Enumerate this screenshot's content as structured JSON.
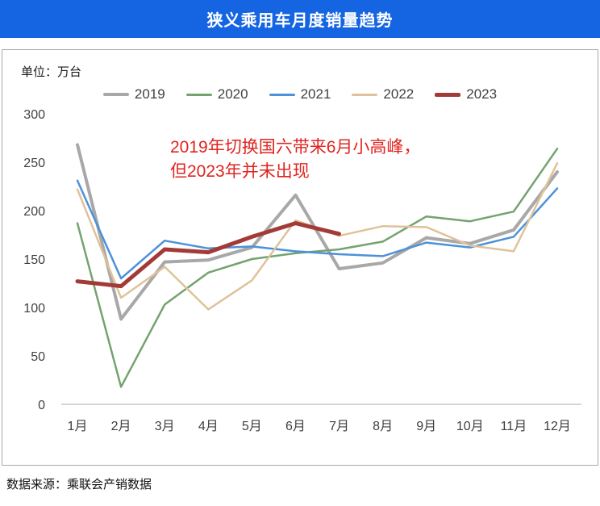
{
  "header": {
    "title": "狭义乘用车月度销量趋势",
    "bg_color": "#1565e2",
    "text_color": "#ffffff"
  },
  "panel": {
    "unit_label": "单位：万台"
  },
  "annotation": {
    "color": "#e02420",
    "lines": {
      "0": "2019年切换国六带来6月小高峰，",
      "1": "但2023年并未出现"
    }
  },
  "footer": {
    "source": "数据来源：乘联会产销数据"
  },
  "chart_data": {
    "type": "line",
    "title": "狭义乘用车月度销量趋势",
    "unit": "万台",
    "xlabel": "",
    "ylabel": "单位：万台",
    "ylim": [
      0,
      300
    ],
    "y_ticks": [
      0,
      50,
      100,
      150,
      200,
      250,
      300
    ],
    "grid": false,
    "legend_position": "top",
    "categories": [
      "1月",
      "2月",
      "3月",
      "4月",
      "5月",
      "6月",
      "7月",
      "8月",
      "9月",
      "10月",
      "11月",
      "12月"
    ],
    "series": [
      {
        "name": "2019",
        "color": "#a8a8a8",
        "stroke_width": 4,
        "values": [
          268,
          88,
          147,
          149,
          162,
          216,
          140,
          146,
          172,
          166,
          180,
          240
        ]
      },
      {
        "name": "2020",
        "color": "#74a36f",
        "stroke_width": 2.5,
        "values": [
          187,
          18,
          103,
          136,
          150,
          156,
          160,
          168,
          194,
          189,
          199,
          264
        ]
      },
      {
        "name": "2021",
        "color": "#4d92d8",
        "stroke_width": 2.5,
        "values": [
          231,
          130,
          169,
          161,
          163,
          158,
          155,
          153,
          167,
          162,
          173,
          223
        ]
      },
      {
        "name": "2022",
        "color": "#dfc29a",
        "stroke_width": 2.5,
        "values": [
          222,
          110,
          142,
          98,
          128,
          190,
          174,
          184,
          183,
          164,
          158,
          249
        ]
      },
      {
        "name": "2023",
        "color": "#a23b38",
        "stroke_width": 5,
        "values": [
          127,
          122,
          160,
          157,
          173,
          187,
          176,
          null,
          null,
          null,
          null,
          null
        ]
      }
    ],
    "axis_color": "#c9c9c9",
    "tick_label_color": "#3f3f3f"
  }
}
